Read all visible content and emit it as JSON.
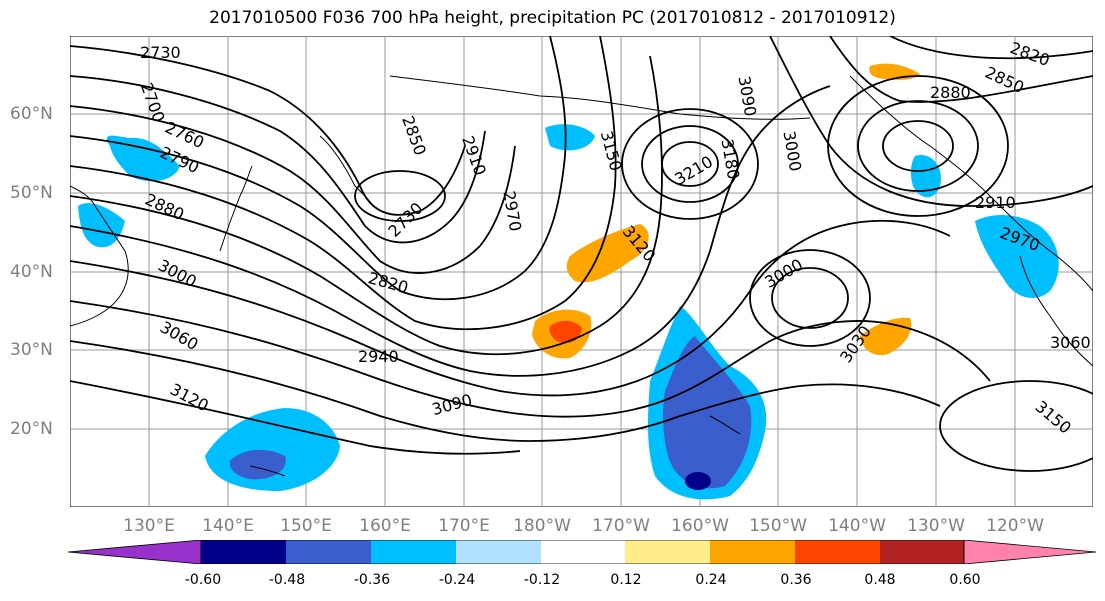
{
  "title": "2017010500 F036 700 hPa height, precipitation PC (2017010812 - 2017010912)",
  "lat_labels": [
    "60°N",
    "50°N",
    "40°N",
    "30°N",
    "20°N"
  ],
  "lon_labels": [
    "130°E",
    "140°E",
    "150°E",
    "160°E",
    "170°E",
    "180°W",
    "170°W",
    "160°W",
    "150°W",
    "140°W",
    "130°W",
    "120°W"
  ],
  "contour_labels": [
    "2730",
    "2700",
    "2760",
    "2790",
    "2880",
    "3000",
    "3060",
    "3120",
    "2850",
    "2910",
    "2730",
    "2970",
    "2820",
    "2940",
    "3090",
    "3150",
    "3210",
    "3180",
    "3090",
    "3000",
    "3120",
    "3000",
    "3030",
    "2880",
    "2850",
    "2820",
    "2910",
    "2970",
    "3060",
    "3150"
  ],
  "colorbar": {
    "ticks": [
      "-0.60",
      "-0.48",
      "-0.36",
      "-0.24",
      "-0.12",
      "0.12",
      "0.24",
      "0.36",
      "0.48",
      "0.60"
    ],
    "colors": [
      "#9932CC",
      "#00008B",
      "#3A5FCD",
      "#00BFFF",
      "#B0E2FF",
      "#FFFFFF",
      "#FFEC8B",
      "#FFA500",
      "#FF4500",
      "#B22222",
      "#FF82AB"
    ]
  },
  "shading_colors": {
    "neg_light": "#00BFFF",
    "neg_mid": "#3A5FCD",
    "neg_dark": "#00008B",
    "pos_light": "#FFA500",
    "pos_mid": "#FF4500"
  }
}
